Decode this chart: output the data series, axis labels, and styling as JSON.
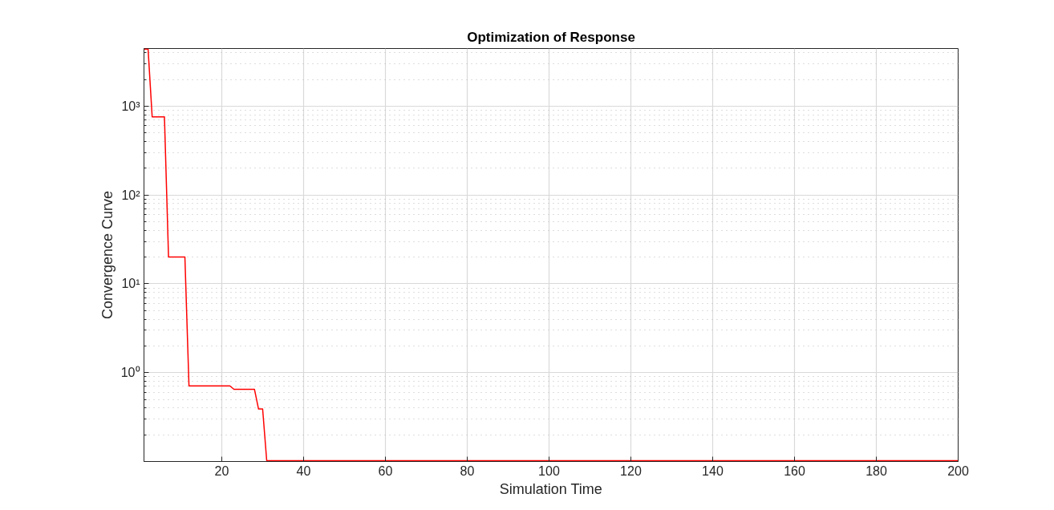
{
  "chart_data": {
    "type": "line",
    "title": "Optimization of Response",
    "xlabel": "Simulation Time",
    "ylabel": "Convergence Curve",
    "x": [
      1,
      2,
      3,
      6,
      7,
      11,
      12,
      22,
      23,
      28,
      29,
      30,
      31,
      200
    ],
    "series": [
      {
        "color": "#ff0000",
        "values": [
          4400,
          4400,
          760,
          760,
          20,
          20,
          0.71,
          0.71,
          0.65,
          0.65,
          0.39,
          0.39,
          0.102,
          0.102
        ]
      }
    ],
    "xlim": [
      1,
      200
    ],
    "xticks": [
      20,
      40,
      60,
      80,
      100,
      120,
      140,
      160,
      180,
      200
    ],
    "ylim": [
      0.1,
      4460
    ],
    "yticks": [
      {
        "value": 1,
        "label": "10⁰"
      },
      {
        "value": 10,
        "label": "10¹"
      },
      {
        "value": 100,
        "label": "10²"
      },
      {
        "value": 1000,
        "label": "10³"
      }
    ],
    "log": true,
    "grid": true,
    "marker": "none",
    "line_style": "solid"
  }
}
